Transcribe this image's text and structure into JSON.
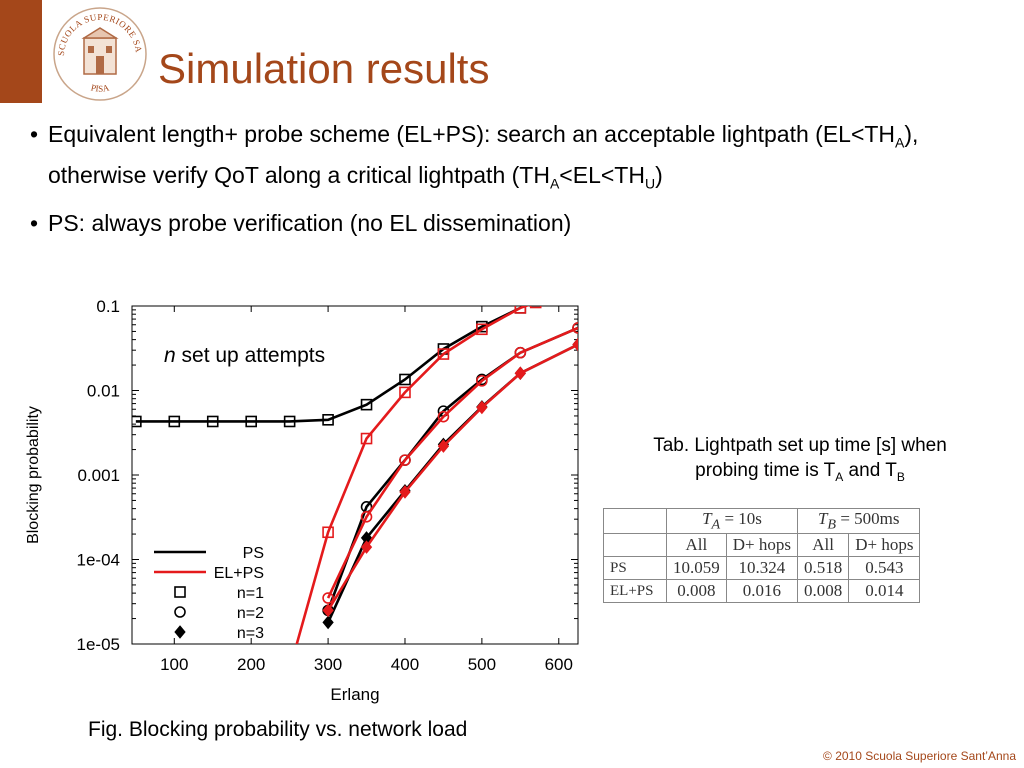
{
  "slide": {
    "title": "Simulation results",
    "bullets": [
      {
        "parts": [
          {
            "t": "Equivalent length+ probe scheme (EL+PS): search an acceptable lightpath (EL<TH"
          },
          {
            "t": "A",
            "sub": true
          },
          {
            "t": "), otherwise verify QoT along a critical lightpath (TH"
          },
          {
            "t": "A",
            "sub": true
          },
          {
            "t": "<EL<TH"
          },
          {
            "t": "U",
            "sub": true
          },
          {
            "t": ")"
          }
        ]
      },
      {
        "parts": [
          {
            "t": "PS: always probe verification (no EL dissemination)"
          }
        ]
      }
    ],
    "figure_caption": "Fig. Blocking probability vs. network load",
    "table_caption_line1": "Tab. Lightpath set up time [s] when",
    "table_caption_line2_a": "probing time is T",
    "table_caption_sub_a": "A",
    "table_caption_line2_b": " and T",
    "table_caption_sub_b": "B",
    "copyright": "© 2010 Scuola Superiore Sant’Anna",
    "logo_text_top": "SCUOLA SUPERIORE SANT'ANNA",
    "logo_text_bottom": "PISA",
    "accent_color": "#a4471a"
  },
  "table": {
    "group_headers": [
      {
        "var": "T",
        "sub": "A",
        "value": " = 10s"
      },
      {
        "var": "T",
        "sub": "B",
        "value": " = 500ms"
      }
    ],
    "column_headers": [
      "All",
      "D+ hops",
      "All",
      "D+ hops"
    ],
    "rows": [
      {
        "label": "PS",
        "values": [
          "10.059",
          "10.324",
          "0.518",
          "0.543"
        ]
      },
      {
        "label": "EL+PS",
        "values": [
          "0.008",
          "0.016",
          "0.008",
          "0.014"
        ]
      }
    ]
  },
  "chart_data": {
    "type": "line",
    "title": "",
    "xlabel": "Erlang",
    "ylabel": "Blocking probability",
    "annotation_italic": "n",
    "annotation_rest": " set up attempts",
    "xlim": [
      45,
      625
    ],
    "ylim": [
      1e-05,
      0.1
    ],
    "yscale": "log",
    "xticks": [
      100,
      200,
      300,
      400,
      500,
      600
    ],
    "yticks": [
      0.1,
      0.01,
      0.001,
      0.0001,
      1e-05
    ],
    "ytick_labels": [
      "0.1",
      "0.01",
      "0.001",
      "1e-04",
      "1e-05"
    ],
    "legend": {
      "placement": "bottom-left",
      "entries": [
        {
          "label": "PS",
          "kind": "line",
          "color": "#000000"
        },
        {
          "label": "EL+PS",
          "kind": "line",
          "color": "#e41a1c"
        },
        {
          "label": "n=1",
          "kind": "marker",
          "marker": "square"
        },
        {
          "label": "n=2",
          "kind": "marker",
          "marker": "circle"
        },
        {
          "label": "n=3",
          "kind": "marker",
          "marker": "diamond"
        }
      ]
    },
    "series": [
      {
        "scheme": "PS",
        "n": 1,
        "color": "#000000",
        "marker": "square",
        "x": [
          50,
          100,
          150,
          200,
          250,
          300,
          350,
          400,
          450,
          500,
          550
        ],
        "y": [
          0.0043,
          0.0043,
          0.0043,
          0.0043,
          0.0043,
          0.0045,
          0.0068,
          0.0135,
          0.031,
          0.057,
          0.095
        ]
      },
      {
        "scheme": "EL+PS",
        "n": 1,
        "color": "#e41a1c",
        "marker": "square",
        "x": [
          250,
          300,
          350,
          400,
          450,
          500,
          550,
          570
        ],
        "y": [
          5e-06,
          0.00021,
          0.0027,
          0.0095,
          0.027,
          0.053,
          0.095,
          0.11
        ]
      },
      {
        "scheme": "PS",
        "n": 2,
        "color": "#000000",
        "marker": "circle",
        "x": [
          300,
          350,
          400,
          450,
          500,
          550,
          625
        ],
        "y": [
          2.5e-05,
          0.00042,
          0.0015,
          0.0057,
          0.0135,
          0.028,
          0.055
        ]
      },
      {
        "scheme": "EL+PS",
        "n": 2,
        "color": "#e41a1c",
        "marker": "circle",
        "x": [
          300,
          350,
          400,
          450,
          500,
          550,
          625
        ],
        "y": [
          3.5e-05,
          0.00032,
          0.0015,
          0.0049,
          0.013,
          0.028,
          0.055
        ]
      },
      {
        "scheme": "PS",
        "n": 3,
        "color": "#000000",
        "marker": "diamond",
        "x": [
          300,
          350,
          400,
          450,
          500,
          550,
          625
        ],
        "y": [
          1.8e-05,
          0.00018,
          0.00065,
          0.0023,
          0.0064,
          0.016,
          0.035
        ]
      },
      {
        "scheme": "EL+PS",
        "n": 3,
        "color": "#e41a1c",
        "marker": "diamond",
        "x": [
          300,
          350,
          400,
          450,
          500,
          550,
          625
        ],
        "y": [
          2.5e-05,
          0.00014,
          0.00063,
          0.0022,
          0.0063,
          0.016,
          0.035
        ]
      }
    ]
  }
}
